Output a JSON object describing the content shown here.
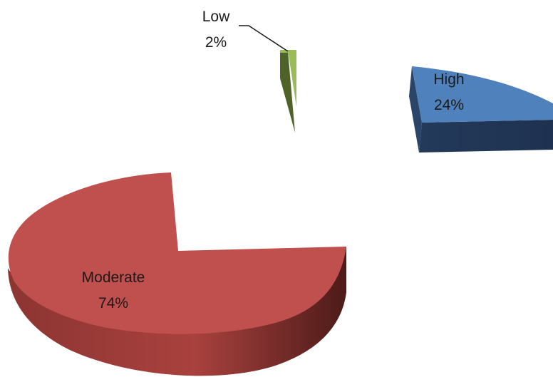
{
  "chart_data": {
    "type": "pie",
    "style": "3d-exploded",
    "slices": [
      {
        "label": "Low",
        "value": 2,
        "value_label": "2%",
        "color": "#9bbb59"
      },
      {
        "label": "High",
        "value": 24,
        "value_label": "24%",
        "color": "#4f81bd"
      },
      {
        "label": "Moderate",
        "value": 74,
        "value_label": "74%",
        "color": "#c0504d"
      }
    ]
  }
}
